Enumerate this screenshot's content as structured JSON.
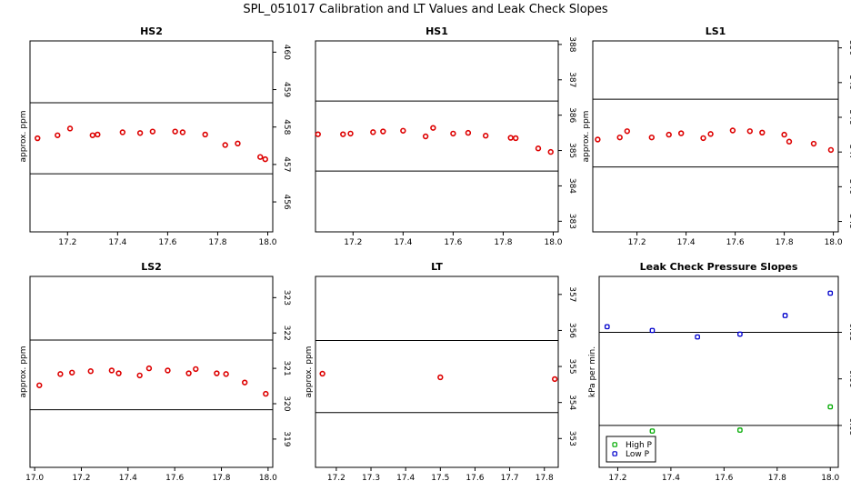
{
  "page_title": "SPL_051017  Calibration and LT Values and Leak Check Slopes",
  "colors": {
    "red": "#dd0000",
    "green": "#00aa00",
    "blue": "#0000cc",
    "axis": "#000000"
  },
  "chart_data": [
    {
      "type": "scatter",
      "title": "HS2",
      "ylabel": "approx. ppm",
      "xlim": [
        17.05,
        18.02
      ],
      "ylim": [
        455.2,
        460.3
      ],
      "xticks": [
        17.2,
        17.4,
        17.6,
        17.8,
        18.0
      ],
      "xtick_labels": [
        "17.2",
        "17.4",
        "17.6",
        "17.8",
        "18.0"
      ],
      "yticks": [
        456,
        457,
        458,
        459,
        460
      ],
      "ytick_labels": [
        "456",
        "457",
        "458",
        "459",
        "460"
      ],
      "hlines": [
        458.65,
        456.75
      ],
      "series": [
        {
          "name": "values",
          "color": "red",
          "x": [
            17.08,
            17.16,
            17.21,
            17.3,
            17.32,
            17.42,
            17.49,
            17.54,
            17.63,
            17.66,
            17.75,
            17.83,
            17.88,
            17.97,
            17.99
          ],
          "y": [
            457.7,
            457.78,
            457.96,
            457.78,
            457.8,
            457.86,
            457.84,
            457.88,
            457.88,
            457.86,
            457.8,
            457.52,
            457.56,
            457.2,
            457.14
          ]
        }
      ]
    },
    {
      "type": "scatter",
      "title": "HS1",
      "ylabel": "",
      "xlim": [
        17.05,
        18.02
      ],
      "ylim": [
        382.7,
        388.1
      ],
      "xticks": [
        17.2,
        17.4,
        17.6,
        17.8,
        18.0
      ],
      "xtick_labels": [
        "17.2",
        "17.4",
        "17.6",
        "17.8",
        "18.0"
      ],
      "yticks": [
        383,
        384,
        385,
        386,
        387,
        388
      ],
      "ytick_labels": [
        "383",
        "384",
        "385",
        "386",
        "387",
        "388"
      ],
      "hlines": [
        386.4,
        384.42
      ],
      "series": [
        {
          "name": "values",
          "color": "red",
          "x": [
            17.06,
            17.16,
            17.19,
            17.28,
            17.32,
            17.4,
            17.49,
            17.52,
            17.6,
            17.66,
            17.73,
            17.83,
            17.85,
            17.94,
            17.99
          ],
          "y": [
            385.46,
            385.46,
            385.48,
            385.52,
            385.54,
            385.56,
            385.4,
            385.64,
            385.48,
            385.5,
            385.42,
            385.36,
            385.35,
            385.06,
            384.96
          ]
        }
      ]
    },
    {
      "type": "scatter",
      "title": "LS1",
      "ylabel": "approx. ppm",
      "xlim": [
        17.02,
        18.02
      ],
      "ylim": [
        344.7,
        350.2
      ],
      "xticks": [
        17.2,
        17.4,
        17.6,
        17.8,
        18.0
      ],
      "xtick_labels": [
        "17.2",
        "17.4",
        "17.6",
        "17.8",
        "18.0"
      ],
      "yticks": [
        345,
        346,
        347,
        348,
        349,
        350
      ],
      "ytick_labels": [
        "345",
        "346",
        "347",
        "348",
        "349",
        "350"
      ],
      "hlines": [
        348.52,
        346.57
      ],
      "series": [
        {
          "name": "values",
          "color": "red",
          "x": [
            17.04,
            17.13,
            17.16,
            17.26,
            17.33,
            17.38,
            17.47,
            17.5,
            17.59,
            17.66,
            17.71,
            17.8,
            17.82,
            17.92,
            17.99
          ],
          "y": [
            347.36,
            347.42,
            347.6,
            347.42,
            347.5,
            347.54,
            347.4,
            347.52,
            347.62,
            347.6,
            347.56,
            347.5,
            347.3,
            347.24,
            347.06
          ]
        }
      ]
    },
    {
      "type": "scatter",
      "title": "LS2",
      "ylabel": "approx. ppm",
      "xlim": [
        16.98,
        18.02
      ],
      "ylim": [
        318.2,
        323.6
      ],
      "xticks": [
        17.0,
        17.2,
        17.4,
        17.6,
        17.8,
        18.0
      ],
      "xtick_labels": [
        "17.0",
        "17.2",
        "17.4",
        "17.6",
        "17.8",
        "18.0"
      ],
      "yticks": [
        319,
        320,
        321,
        322,
        323
      ],
      "ytick_labels": [
        "319",
        "320",
        "321",
        "322",
        "323"
      ],
      "hlines": [
        321.8,
        319.83
      ],
      "series": [
        {
          "name": "values",
          "color": "red",
          "x": [
            17.02,
            17.11,
            17.16,
            17.24,
            17.33,
            17.36,
            17.45,
            17.49,
            17.57,
            17.66,
            17.69,
            17.78,
            17.82,
            17.9,
            17.99
          ],
          "y": [
            320.52,
            320.84,
            320.88,
            320.92,
            320.94,
            320.86,
            320.8,
            321.0,
            320.94,
            320.86,
            320.98,
            320.86,
            320.84,
            320.6,
            320.28
          ]
        }
      ]
    },
    {
      "type": "scatter",
      "title": "LT",
      "ylabel": "approx. ppm",
      "xlim": [
        17.14,
        17.84
      ],
      "ylim": [
        352.2,
        357.5
      ],
      "xticks": [
        17.2,
        17.3,
        17.4,
        17.5,
        17.6,
        17.7,
        17.8
      ],
      "xtick_labels": [
        "17.2",
        "17.3",
        "17.4",
        "17.5",
        "17.6",
        "17.7",
        "17.8"
      ],
      "yticks": [
        353,
        354,
        355,
        356,
        357
      ],
      "ytick_labels": [
        "353",
        "354",
        "355",
        "356",
        "357"
      ],
      "hlines": [
        355.72,
        353.72
      ],
      "series": [
        {
          "name": "values",
          "color": "red",
          "x": [
            17.16,
            17.5,
            17.83
          ],
          "y": [
            354.8,
            354.7,
            354.65
          ]
        }
      ]
    },
    {
      "type": "scatter",
      "title": "Leak Check Pressure Slopes",
      "ylabel": "kPa per min.",
      "xlim": [
        17.13,
        18.03
      ],
      "ylim": [
        -0.095,
        0.11
      ],
      "xticks": [
        17.2,
        17.4,
        17.6,
        17.8,
        18.0
      ],
      "xtick_labels": [
        "17.2",
        "17.4",
        "17.6",
        "17.8",
        "18.0"
      ],
      "yticks": [
        -0.05,
        0.0,
        0.05
      ],
      "ytick_labels": [
        "-0.05",
        "0.00",
        "0.05"
      ],
      "hlines": [
        0.05,
        -0.05
      ],
      "legend": {
        "position": "bottom-left",
        "entries": [
          {
            "label": "High P",
            "color": "green"
          },
          {
            "label": "Low P",
            "color": "blue"
          }
        ]
      },
      "series": [
        {
          "name": "High P",
          "color": "green",
          "x": [
            17.33,
            17.66,
            18.0
          ],
          "y": [
            -0.056,
            -0.055,
            -0.03
          ]
        },
        {
          "name": "Low P",
          "color": "blue",
          "x": [
            17.16,
            17.33,
            17.5,
            17.66,
            17.83,
            18.0
          ],
          "y": [
            0.056,
            0.052,
            0.045,
            0.048,
            0.068,
            0.092
          ]
        }
      ]
    }
  ]
}
